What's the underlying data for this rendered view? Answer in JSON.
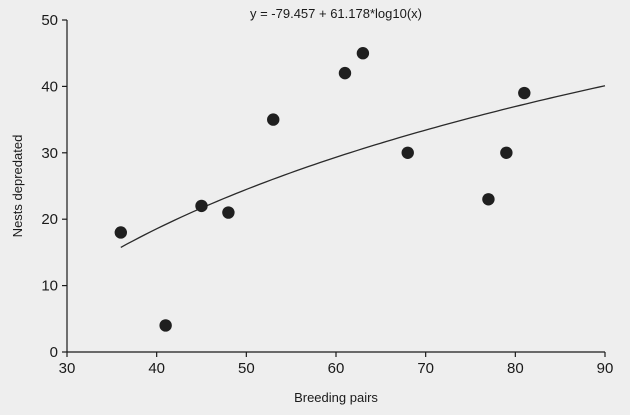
{
  "chart_data": {
    "type": "scatter",
    "title": "y = -79.457 + 61.178*log10(x)",
    "xlabel": "Breeding pairs",
    "ylabel": "Nests depredated",
    "xlim": [
      30,
      90
    ],
    "ylim": [
      0,
      50
    ],
    "x_ticks": [
      30,
      40,
      50,
      60,
      70,
      80,
      90
    ],
    "y_ticks": [
      0,
      10,
      20,
      30,
      40,
      50
    ],
    "grid": false,
    "legend": "none",
    "series": [
      {
        "points": [
          {
            "x": 36,
            "y": 18
          },
          {
            "x": 41,
            "y": 4
          },
          {
            "x": 45,
            "y": 22
          },
          {
            "x": 48,
            "y": 21
          },
          {
            "x": 53,
            "y": 35
          },
          {
            "x": 61,
            "y": 42
          },
          {
            "x": 63,
            "y": 45
          },
          {
            "x": 68,
            "y": 30
          },
          {
            "x": 77,
            "y": 23
          },
          {
            "x": 79,
            "y": 30
          },
          {
            "x": 81,
            "y": 39
          }
        ]
      }
    ],
    "fit": {
      "type": "log10",
      "intercept": -79.457,
      "slope": 61.178,
      "x_range": [
        36,
        90
      ]
    },
    "colors": {
      "marker": "#1f1f1f",
      "line": "#2a2a2a",
      "axis": "#1a1a1a",
      "background": "#eeeeee"
    }
  }
}
